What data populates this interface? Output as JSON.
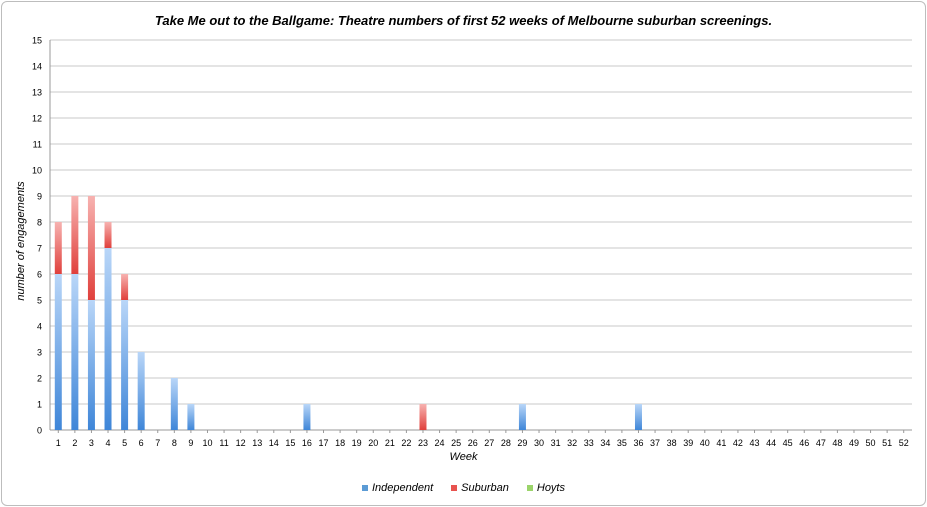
{
  "chart_data": {
    "type": "bar",
    "stacked": true,
    "title": "Take Me out to the Ballgame: Theatre numbers of first 52 weeks of Melbourne suburban screenings.",
    "xlabel": "Week",
    "ylabel": "number of engagements",
    "ylim": [
      0,
      15
    ],
    "yticks": [
      "0",
      "1",
      "2",
      "3",
      "4",
      "5",
      "6",
      "7",
      "8",
      "9",
      "10",
      "11",
      "12",
      "13",
      "14",
      "15"
    ],
    "grid": true,
    "legend_position": "bottom",
    "categories": [
      "1",
      "2",
      "3",
      "4",
      "5",
      "6",
      "7",
      "8",
      "9",
      "10",
      "11",
      "12",
      "13",
      "14",
      "15",
      "16",
      "17",
      "18",
      "19",
      "20",
      "21",
      "22",
      "23",
      "24",
      "25",
      "26",
      "27",
      "28",
      "29",
      "30",
      "31",
      "32",
      "33",
      "34",
      "35",
      "36",
      "37",
      "38",
      "39",
      "40",
      "41",
      "42",
      "43",
      "44",
      "45",
      "46",
      "47",
      "48",
      "49",
      "50",
      "51",
      "52"
    ],
    "series": [
      {
        "name": "Independent",
        "color": "#5b9bd5",
        "values": [
          6,
          6,
          5,
          7,
          5,
          3,
          0,
          2,
          1,
          0,
          0,
          0,
          0,
          0,
          0,
          1,
          0,
          0,
          0,
          0,
          0,
          0,
          0,
          0,
          0,
          0,
          0,
          0,
          1,
          0,
          0,
          0,
          0,
          0,
          0,
          1,
          0,
          0,
          0,
          0,
          0,
          0,
          0,
          0,
          0,
          0,
          0,
          0,
          0,
          0,
          0,
          0
        ]
      },
      {
        "name": "Suburban",
        "color": "#e8534f",
        "values": [
          2,
          3,
          4,
          1,
          1,
          0,
          0,
          0,
          0,
          0,
          0,
          0,
          0,
          0,
          0,
          0,
          0,
          0,
          0,
          0,
          0,
          0,
          1,
          0,
          0,
          0,
          0,
          0,
          0,
          0,
          0,
          0,
          0,
          0,
          0,
          0,
          0,
          0,
          0,
          0,
          0,
          0,
          0,
          0,
          0,
          0,
          0,
          0,
          0,
          0,
          0,
          0
        ]
      },
      {
        "name": "Hoyts",
        "color": "#9bd46a",
        "values": [
          0,
          0,
          0,
          0,
          0,
          0,
          0,
          0,
          0,
          0,
          0,
          0,
          0,
          0,
          0,
          0,
          0,
          0,
          0,
          0,
          0,
          0,
          0,
          0,
          0,
          0,
          0,
          0,
          0,
          0,
          0,
          0,
          0,
          0,
          0,
          0,
          0,
          0,
          0,
          0,
          0,
          0,
          0,
          0,
          0,
          0,
          0,
          0,
          0,
          0,
          0,
          0
        ]
      }
    ]
  }
}
